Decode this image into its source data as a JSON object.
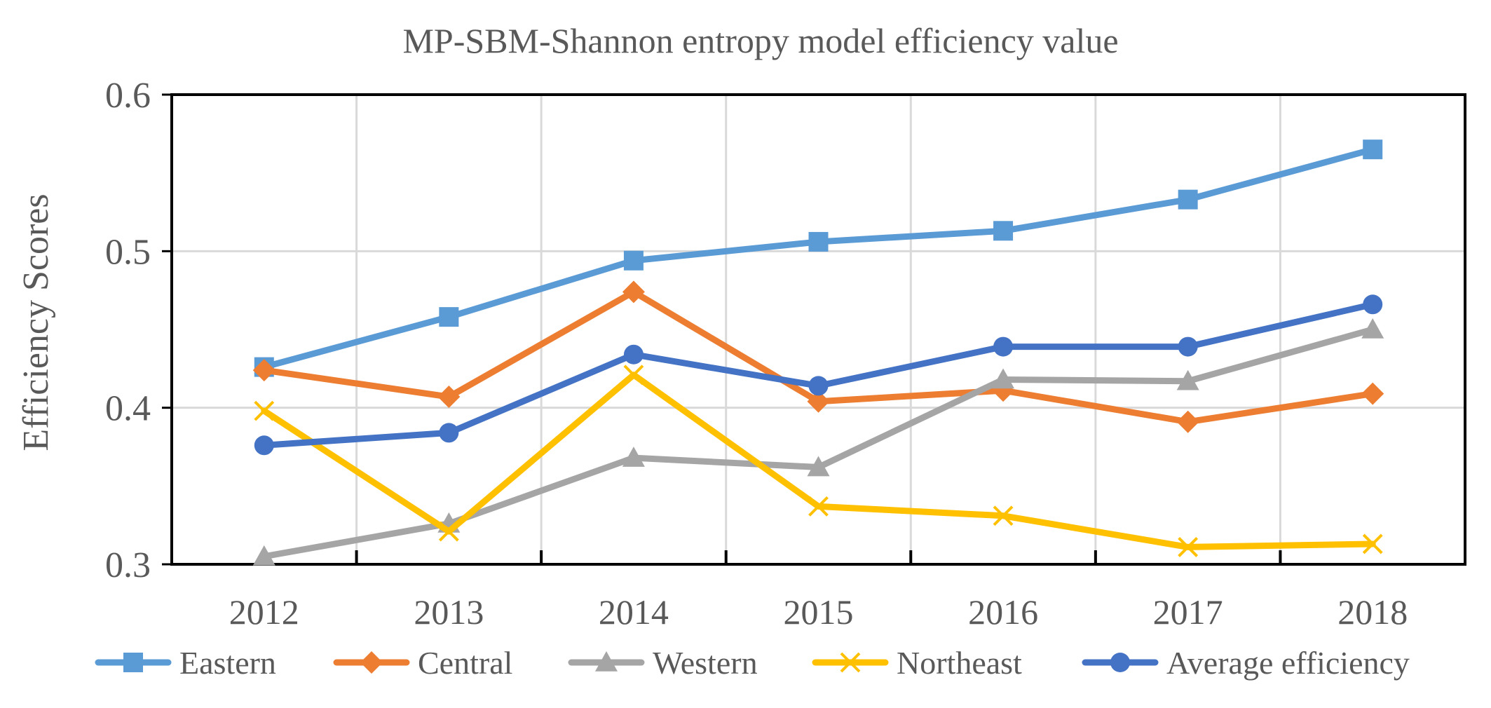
{
  "chart_data": {
    "type": "line",
    "title": "MP-SBM-Shannon entropy model efficiency value",
    "xlabel": "",
    "ylabel": "Efficiency Scores",
    "categories": [
      "2012",
      "2013",
      "2014",
      "2015",
      "2016",
      "2017",
      "2018"
    ],
    "ylim": [
      0.3,
      0.6
    ],
    "yticks": [
      0.3,
      0.4,
      0.5,
      0.6
    ],
    "ytick_labels": [
      "0.3",
      "0.4",
      "0.5",
      "0.6"
    ],
    "grid": true,
    "legend_position": "bottom",
    "series": [
      {
        "name": "Eastern",
        "color": "#5B9BD5",
        "marker": "square",
        "values": [
          0.426,
          0.458,
          0.494,
          0.506,
          0.513,
          0.533,
          0.565
        ]
      },
      {
        "name": "Central",
        "color": "#ED7D31",
        "marker": "diamond",
        "values": [
          0.424,
          0.407,
          0.474,
          0.404,
          0.411,
          0.391,
          0.409
        ]
      },
      {
        "name": "Western",
        "color": "#A5A5A5",
        "marker": "triangle",
        "values": [
          0.305,
          0.326,
          0.368,
          0.362,
          0.418,
          0.417,
          0.45
        ]
      },
      {
        "name": "Northeast",
        "color": "#FFC000",
        "marker": "x",
        "values": [
          0.398,
          0.321,
          0.421,
          0.337,
          0.331,
          0.311,
          0.313
        ]
      },
      {
        "name": "Average efficiency",
        "color": "#4472C4",
        "marker": "circle",
        "values": [
          0.376,
          0.384,
          0.434,
          0.414,
          0.439,
          0.439,
          0.466
        ]
      }
    ]
  }
}
